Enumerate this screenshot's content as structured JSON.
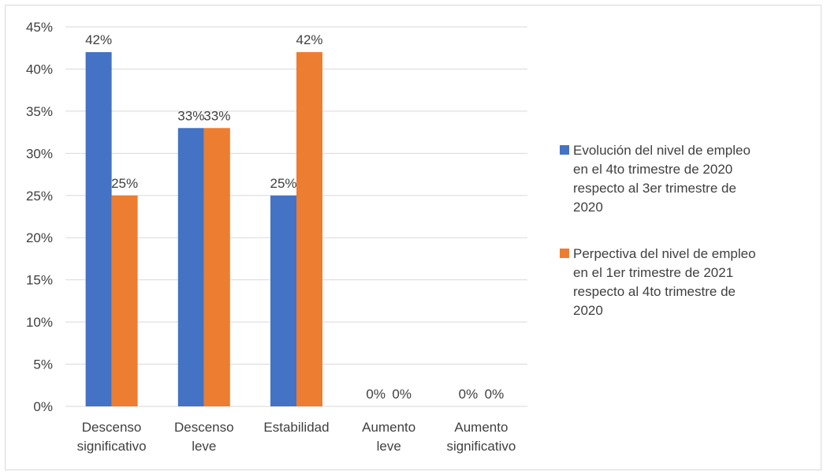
{
  "chart_data": {
    "type": "bar",
    "categories": [
      [
        "Descenso",
        "significativo"
      ],
      [
        "Descenso",
        "leve"
      ],
      [
        "Estabilidad"
      ],
      [
        "Aumento",
        "leve"
      ],
      [
        "Aumento",
        "significativo"
      ]
    ],
    "series": [
      {
        "name": [
          "Evolución del nivel de empleo",
          "en el 4to trimestre de 2020",
          "respecto al 3er trimestre de",
          "2020"
        ],
        "color": "#4472C4",
        "values": [
          42,
          33,
          25,
          0,
          0
        ],
        "labels": [
          "42%",
          "33%",
          "25%",
          "0%",
          "0%"
        ]
      },
      {
        "name": [
          "Perpectiva del nivel de empleo",
          "en el 1er trimestre de 2021",
          "respecto al 4to trimestre de",
          "2020"
        ],
        "color": "#ED7D31",
        "values": [
          25,
          33,
          42,
          0,
          0
        ],
        "labels": [
          "25%",
          "33%",
          "42%",
          "0%",
          "0%"
        ]
      }
    ],
    "ylim": [
      0,
      45
    ],
    "yticks": [
      "0%",
      "5%",
      "10%",
      "15%",
      "20%",
      "25%",
      "30%",
      "35%",
      "40%",
      "45%"
    ],
    "grid": true,
    "gridColor": "#d9d9d9",
    "legend": "right"
  }
}
